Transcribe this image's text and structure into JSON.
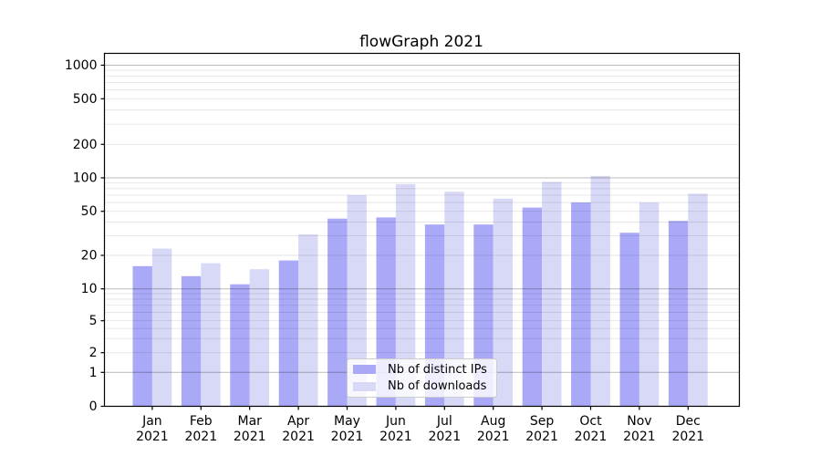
{
  "chart_data": {
    "type": "bar",
    "title": "flowGraph 2021",
    "months": [
      "Jan",
      "Feb",
      "Mar",
      "Apr",
      "May",
      "Jun",
      "Jul",
      "Aug",
      "Sep",
      "Oct",
      "Nov",
      "Dec"
    ],
    "year": "2021",
    "categories": [
      "Jan 2021",
      "Feb 2021",
      "Mar 2021",
      "Apr 2021",
      "May 2021",
      "Jun 2021",
      "Jul 2021",
      "Aug 2021",
      "Sep 2021",
      "Oct 2021",
      "Nov 2021",
      "Dec 2021"
    ],
    "series": [
      {
        "name": "Nb of distinct IPs",
        "color": "#a9a9f8",
        "values": [
          16,
          13,
          11,
          18,
          43,
          44,
          38,
          38,
          54,
          60,
          32,
          41
        ]
      },
      {
        "name": "Nb of downloads",
        "color": "#d8d8f7",
        "values": [
          23,
          17,
          15,
          31,
          70,
          88,
          75,
          65,
          92,
          104,
          60,
          72
        ]
      }
    ],
    "y_axis": {
      "scale": "log-like (compressed below 5, linear 0 to 1)",
      "ticks": [
        0,
        1,
        2,
        5,
        10,
        20,
        50,
        100,
        200,
        500,
        1000
      ],
      "major_gridlines": [
        1,
        10,
        100,
        1000
      ],
      "light_gridlines": [
        2,
        5,
        20,
        50,
        200,
        500
      ],
      "minor_gridlines": [
        3,
        4,
        6,
        7,
        8,
        9,
        30,
        40,
        60,
        70,
        80,
        90,
        300,
        400,
        600,
        700,
        800,
        900
      ],
      "ylim": [
        0,
        1300
      ]
    },
    "x_axis": {
      "tick_line1": [
        "Jan",
        "Feb",
        "Mar",
        "Apr",
        "May",
        "Jun",
        "Jul",
        "Aug",
        "Sep",
        "Oct",
        "Nov",
        "Dec"
      ],
      "tick_line2": "2021"
    },
    "legend": {
      "location": "lower center",
      "labels": [
        "Nb of distinct IPs",
        "Nb of downloads"
      ]
    },
    "grid": true,
    "colors": {
      "background": "#ffffff",
      "spine": "#000000",
      "text": "#000000",
      "major_grid": "rgba(0,0,0,0.28)",
      "minor_grid": "rgba(0,0,0,0.10)"
    }
  }
}
